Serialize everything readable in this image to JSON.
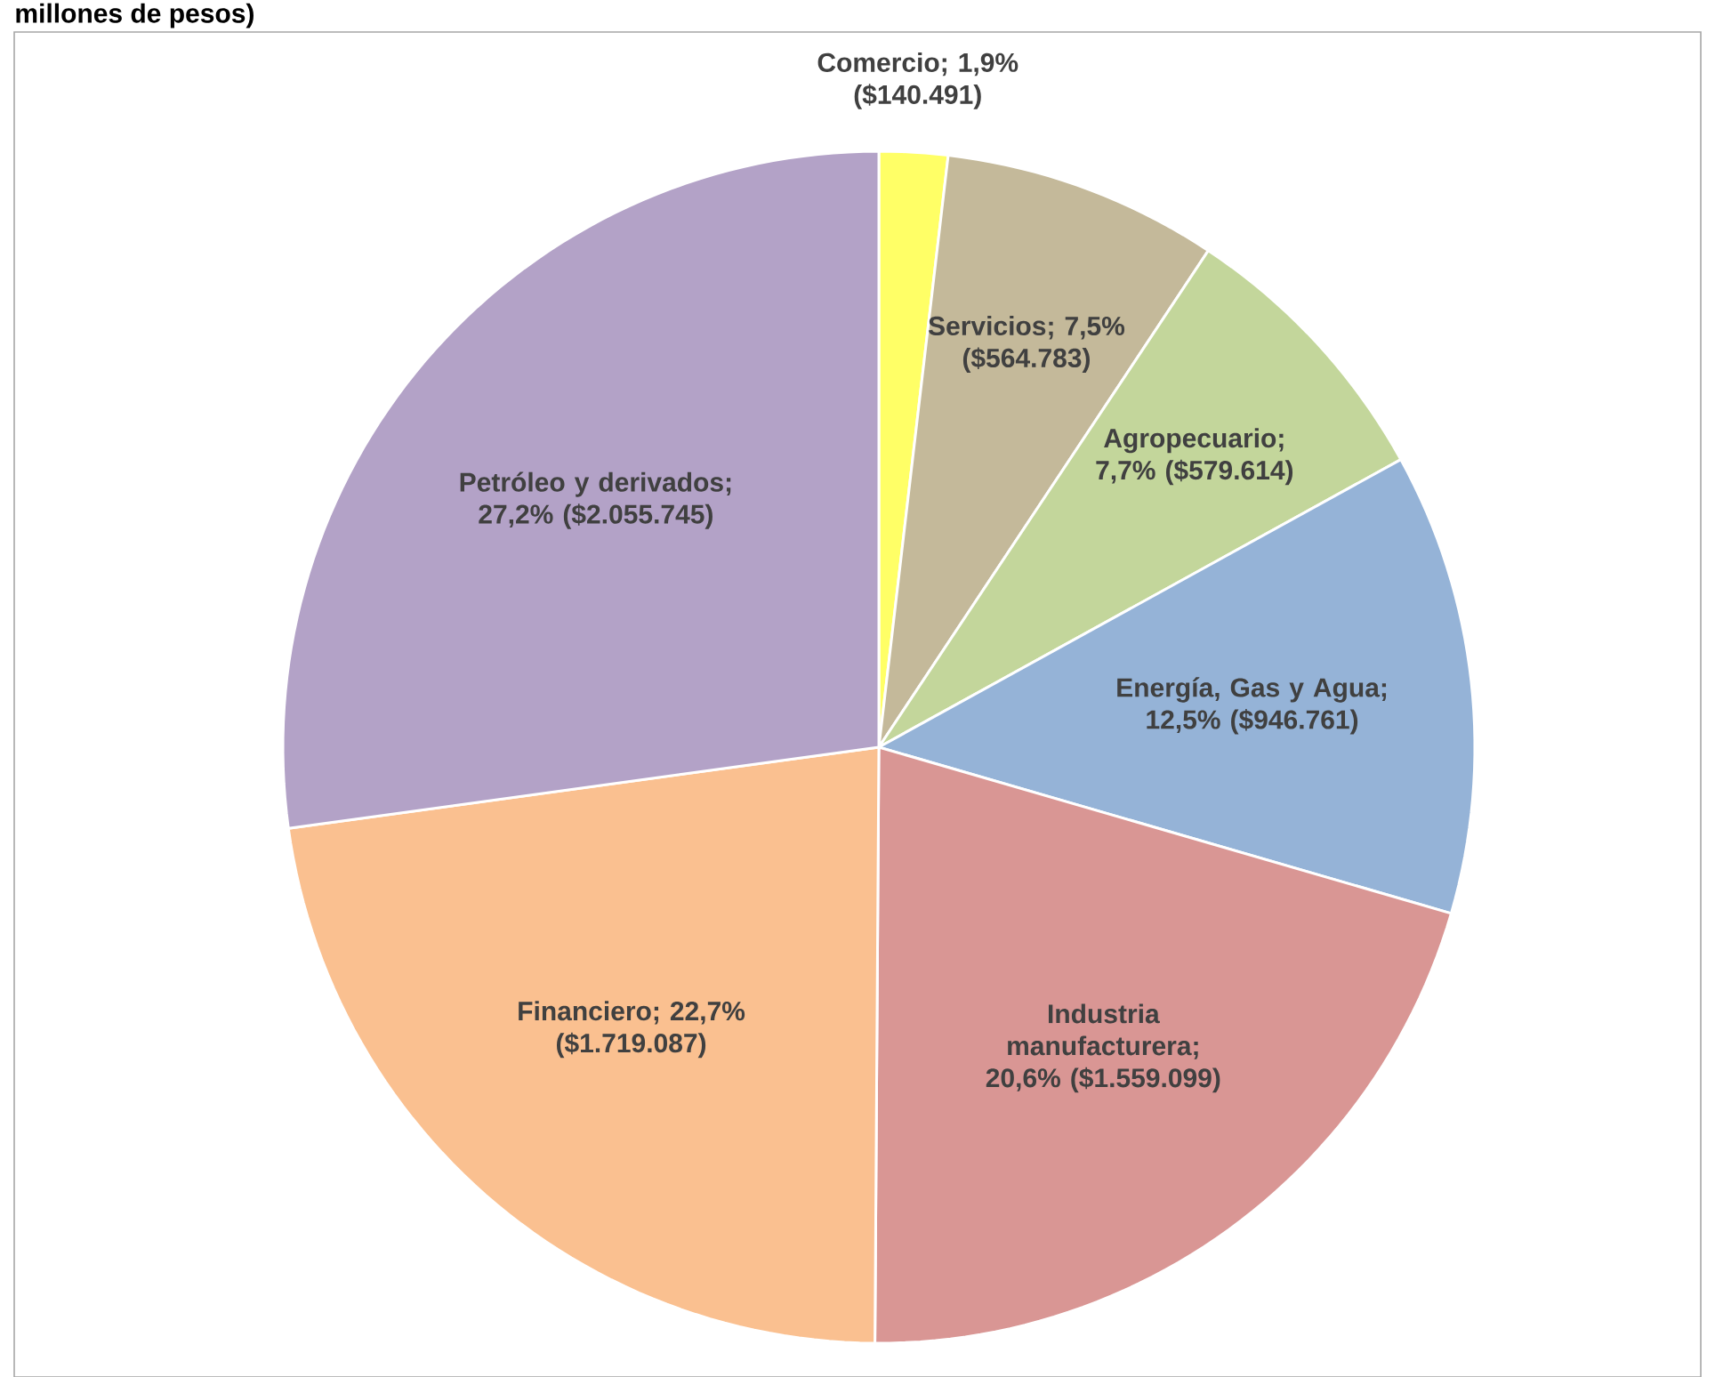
{
  "chart_data": {
    "type": "pie",
    "title": "millones de pesos)",
    "categories": [
      "Comercio; 1,9% ($140.491)",
      "Servicios; 7,5% ($564.783)",
      "Agropecuario; 7,7% ($579.614)",
      "Energía, Gas y Agua; 12,5% ($946.761)",
      "Industria manufacturera; 20,6% ($1.559.099)",
      "Financiero; 22,7% ($1.719.087)",
      "Petróleo y derivados; 27,2% ($2.055.745)"
    ],
    "values": [
      140491,
      564783,
      579614,
      946761,
      1559099,
      1719087,
      2055745
    ],
    "colors": [
      "#ffff66",
      "#c4b99a",
      "#c3d69b",
      "#95b3d7",
      "#d99694",
      "#fac090",
      "#b3a2c7"
    ]
  }
}
